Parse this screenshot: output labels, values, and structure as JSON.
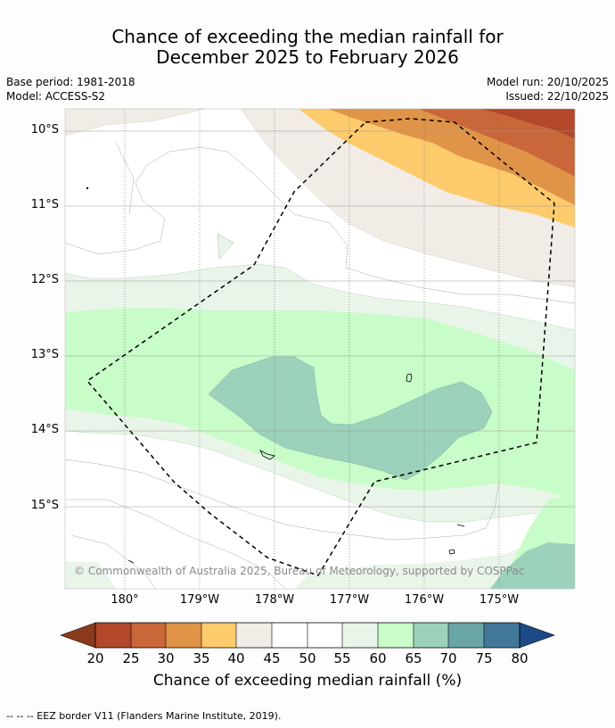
{
  "title": {
    "line1": "Chance of exceeding the median rainfall for",
    "line2": "December 2025 to February 2026"
  },
  "meta": {
    "base_period": "Base period: 1981-2018",
    "model": "Model: ACCESS-S2",
    "model_run": "Model run: 20/10/2025",
    "issued": "Issued: 22/10/2025"
  },
  "map": {
    "lat_labels": [
      "10°S",
      "11°S",
      "12°S",
      "13°S",
      "14°S",
      "15°S"
    ],
    "lon_labels": [
      "180°",
      "179°W",
      "178°W",
      "177°W",
      "176°W",
      "175°W"
    ],
    "copyright": "© Commonwealth of Australia 2025, Bureau of Meteorology, supported by COSPPac"
  },
  "colorbar": {
    "ticks": [
      "20",
      "25",
      "30",
      "35",
      "40",
      "45",
      "50",
      "55",
      "60",
      "65",
      "70",
      "75",
      "80"
    ],
    "colors": {
      "below20": "#8c3a1e",
      "b20_25": "#b2472a",
      "b25_30": "#c9663a",
      "b30_35": "#e09448",
      "b35_40": "#fdcb6b",
      "b40_45": "#f1ece6",
      "b45_55": "#ffffff",
      "b55_60": "#eaf5ea",
      "b60_65": "#c8fcc8",
      "b65_70": "#9cd2bb",
      "b70_75": "#6aa6a6",
      "b75_80": "#41789a",
      "above80": "#1c4a86"
    },
    "label": "Chance of exceeding median rainfall (%)"
  },
  "footnote": "--  --  -- EEZ border V11 (Flanders Marine Institute, 2019)."
}
